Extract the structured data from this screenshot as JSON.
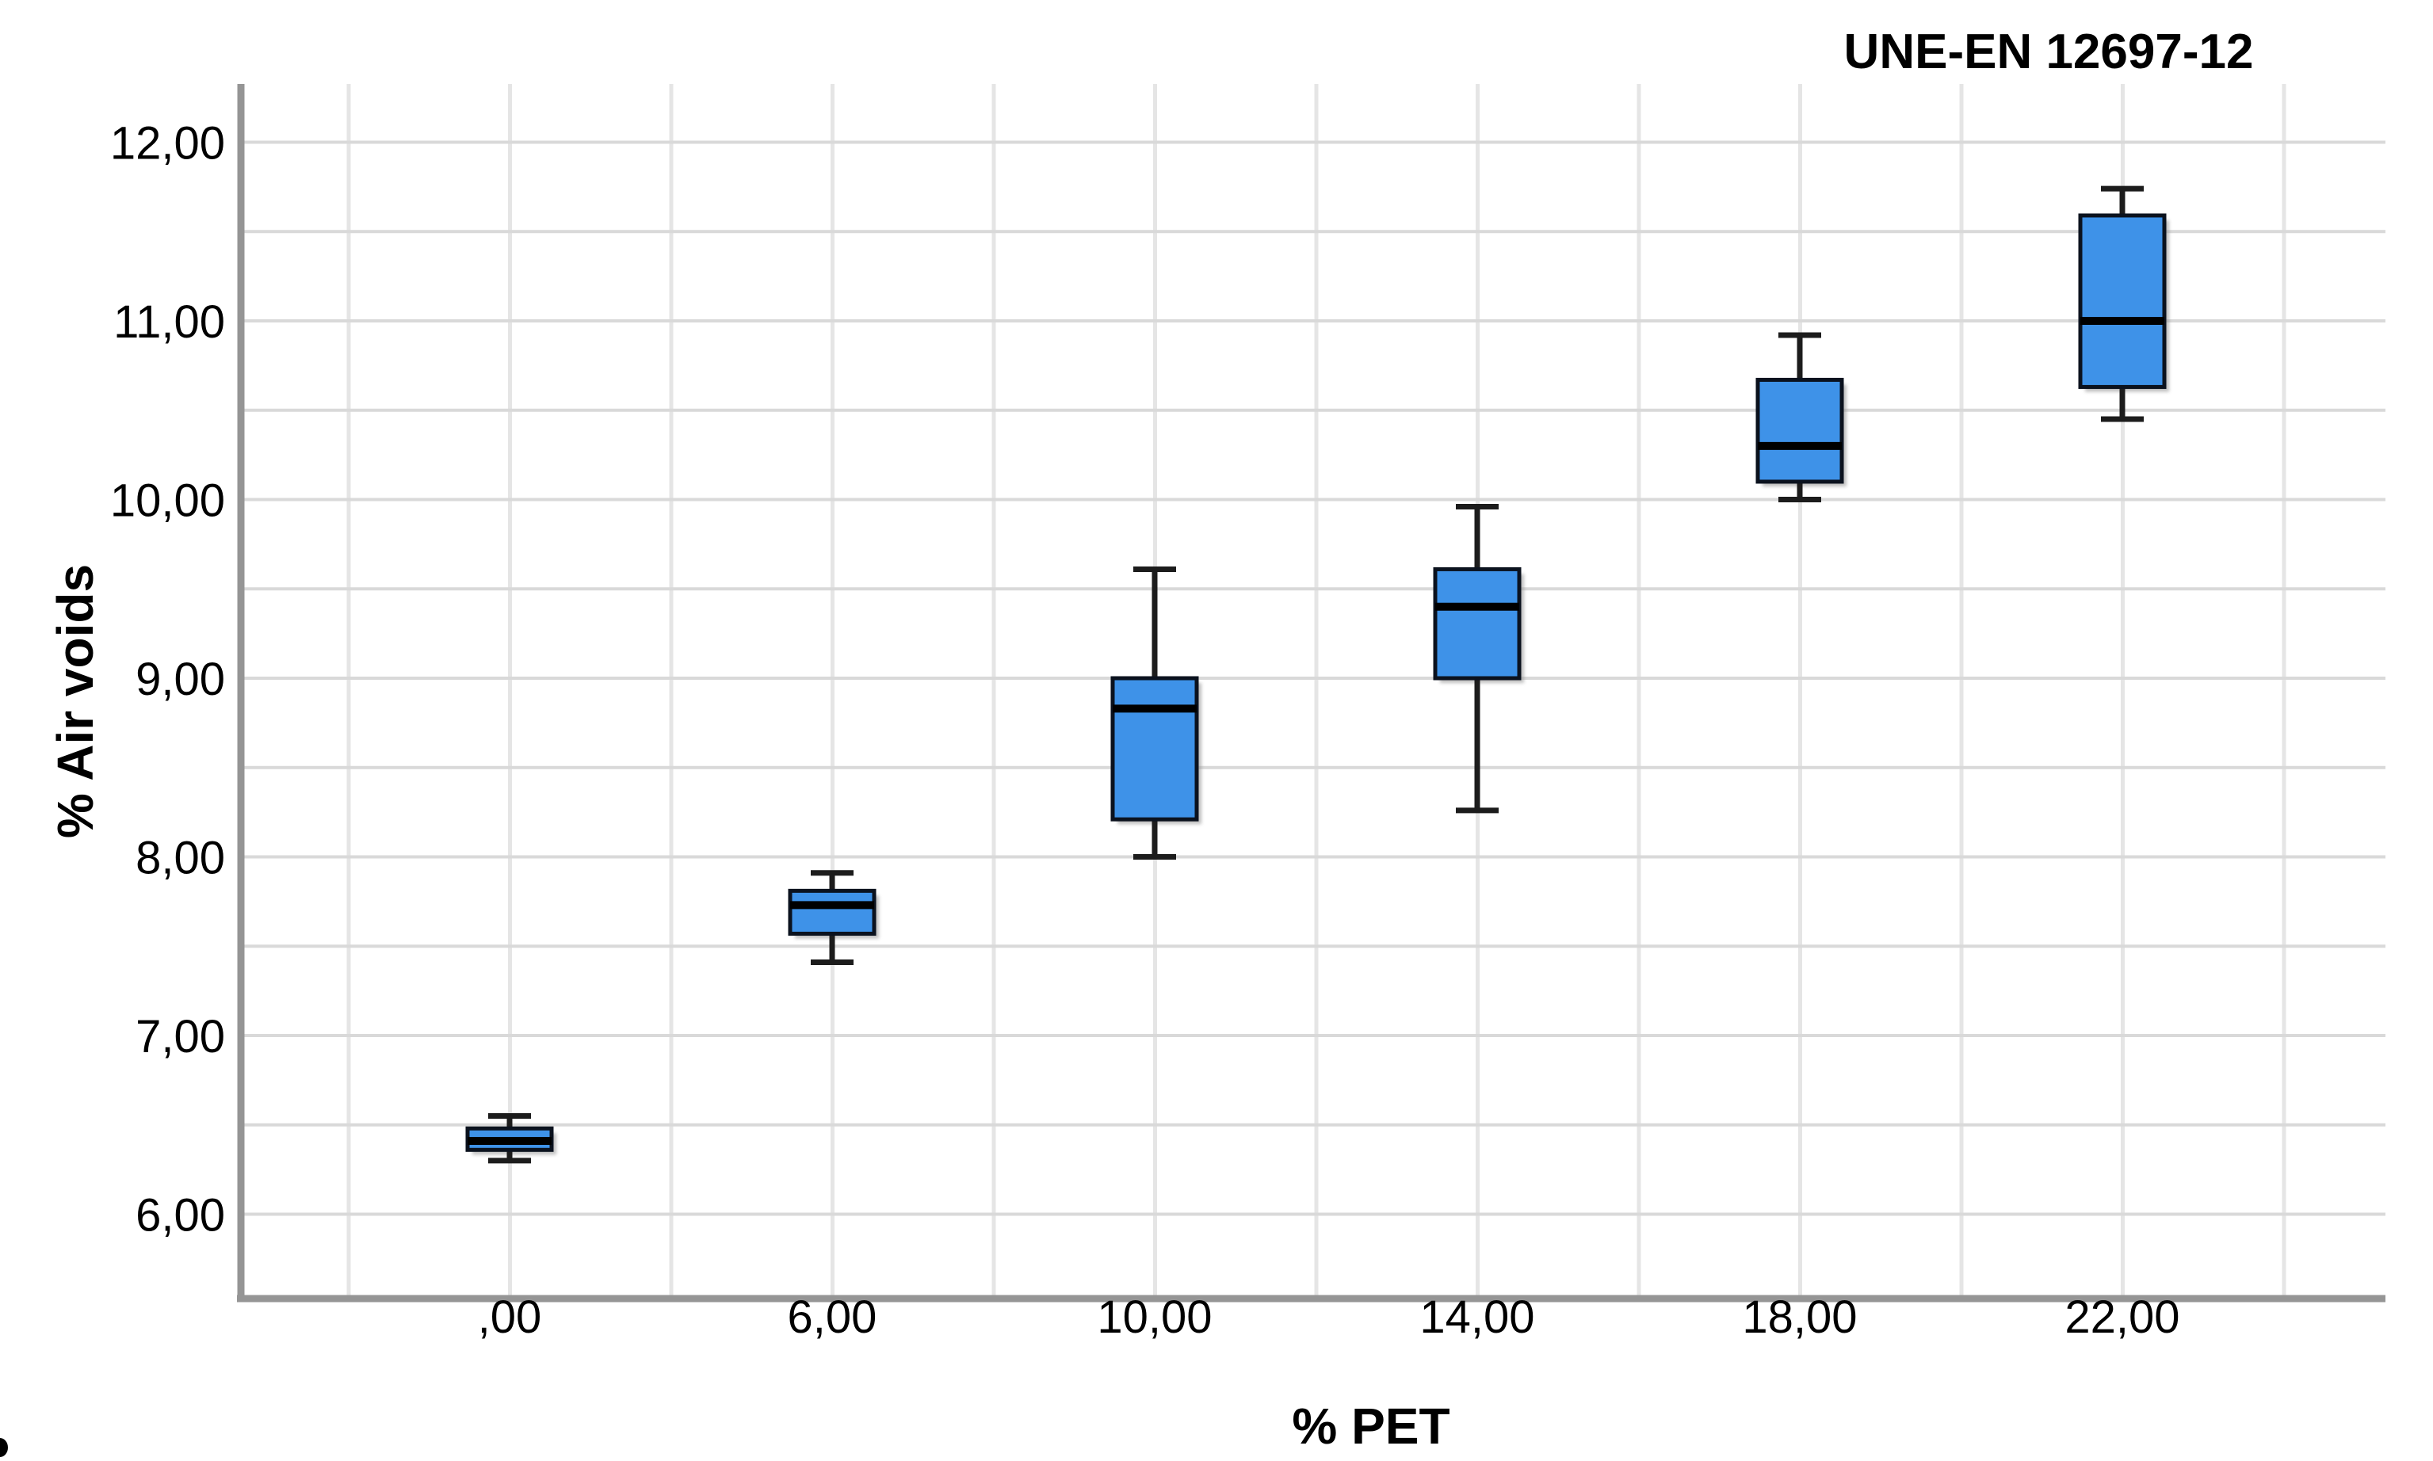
{
  "title": "UNE-EN 12697-12",
  "axes": {
    "y_label": "% Air voids",
    "x_label": "% PET",
    "y_ticks": [
      {
        "label": "12,00",
        "value": 12
      },
      {
        "label": "11,00",
        "value": 11
      },
      {
        "label": "10,00",
        "value": 10
      },
      {
        "label": "9,00",
        "value": 9
      },
      {
        "label": "8,00",
        "value": 8
      },
      {
        "label": "7,00",
        "value": 7
      },
      {
        "label": "6,00",
        "value": 6
      }
    ],
    "x_tick_labels": [
      ",00",
      "6,00",
      "10,00",
      "14,00",
      "18,00",
      "22,00"
    ]
  },
  "chart_data": {
    "type": "boxplot",
    "title": "UNE-EN 12697-12",
    "xlabel": "% PET",
    "ylabel": "% Air voids",
    "categories": [
      ",00",
      "6,00",
      "10,00",
      "14,00",
      "18,00",
      "22,00"
    ],
    "category_values": [
      0,
      6,
      10,
      14,
      18,
      22
    ],
    "ylim": [
      5.55,
      12.32
    ],
    "y_major_ticks": [
      6,
      7,
      8,
      9,
      10,
      11,
      12
    ],
    "y_gridline_step": 0.5,
    "y_grid_min": 6.0,
    "y_grid_max": 12.0,
    "grid": true,
    "legend": "none",
    "series": [
      {
        "name": "% Air voids",
        "boxes": [
          {
            "category": ",00",
            "min": 6.3,
            "q1": 6.36,
            "median": 6.41,
            "q3": 6.48,
            "max": 6.55
          },
          {
            "category": "6,00",
            "min": 7.41,
            "q1": 7.57,
            "median": 7.73,
            "q3": 7.81,
            "max": 7.91
          },
          {
            "category": "10,00",
            "min": 8.0,
            "q1": 8.21,
            "median": 8.83,
            "q3": 9.0,
            "max": 9.61
          },
          {
            "category": "14,00",
            "min": 8.26,
            "q1": 9.0,
            "median": 9.4,
            "q3": 9.61,
            "max": 9.96
          },
          {
            "category": "18,00",
            "min": 10.0,
            "q1": 10.1,
            "median": 10.3,
            "q3": 10.67,
            "max": 10.92
          },
          {
            "category": "22,00",
            "min": 10.45,
            "q1": 10.63,
            "median": 11.0,
            "q3": 11.59,
            "max": 11.74
          }
        ]
      }
    ]
  },
  "colors": {
    "background": "#FFFFFF",
    "box_fill": "#3E92E8",
    "box_border": "#0B121E",
    "median_line": "#000000",
    "whisker_line": "#1C1C1C",
    "grid_horizontal": "#D9D9D9",
    "grid_vertical": "#E5E5E5",
    "axis_frame": "#959595",
    "shadow": "#8A8A8A",
    "tick_label": "#000000"
  }
}
